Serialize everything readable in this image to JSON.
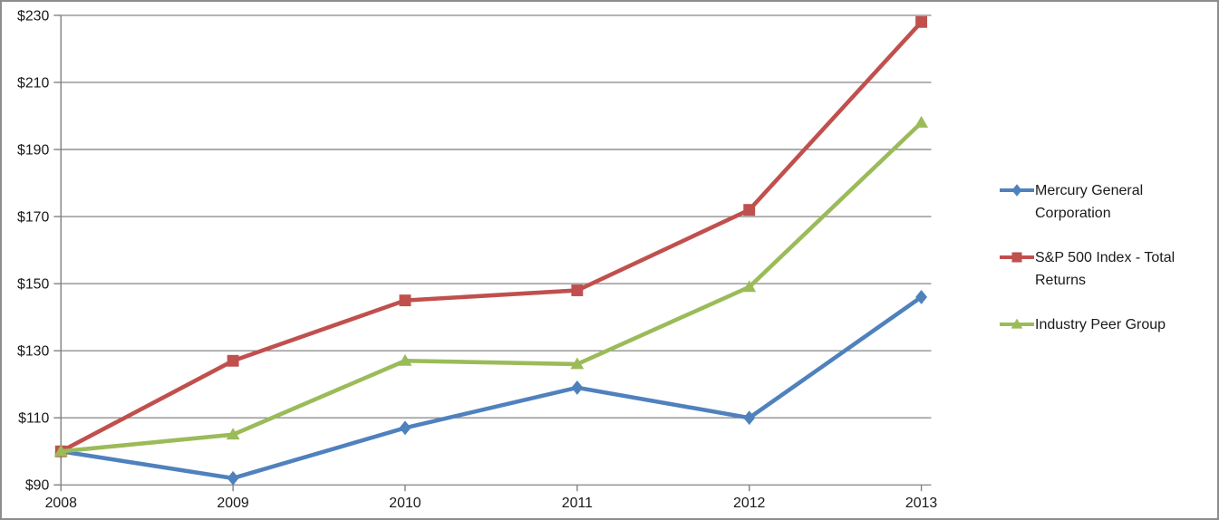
{
  "chart_data": {
    "type": "line",
    "title": "",
    "xlabel": "",
    "ylabel": "",
    "x": [
      "2008",
      "2009",
      "2010",
      "2011",
      "2012",
      "2013"
    ],
    "series": [
      {
        "name": "Mercury General Corporation",
        "marker": "diamond",
        "color": "#4F81BD",
        "values": [
          100,
          92,
          107,
          119,
          110,
          146
        ]
      },
      {
        "name": "S&P 500 Index - Total Returns",
        "marker": "square",
        "color": "#C0504D",
        "values": [
          100,
          127,
          145,
          148,
          172,
          228
        ]
      },
      {
        "name": "Industry Peer Group",
        "marker": "triangle",
        "color": "#9BBB59",
        "values": [
          100,
          105,
          127,
          126,
          149,
          198
        ]
      }
    ],
    "ylim": [
      90,
      230
    ],
    "ytick_step": 20,
    "ytick_labels": [
      "$90",
      "$110",
      "$130",
      "$150",
      "$170",
      "$190",
      "$210",
      "$230"
    ],
    "grid": "horizontal",
    "legend_position": "right"
  },
  "colors": {
    "background": "#ffffff",
    "frame_border": "#8d8d8d",
    "gridline": "#8f8f8f",
    "axis": "#808080",
    "text": "#1a1a1a"
  }
}
